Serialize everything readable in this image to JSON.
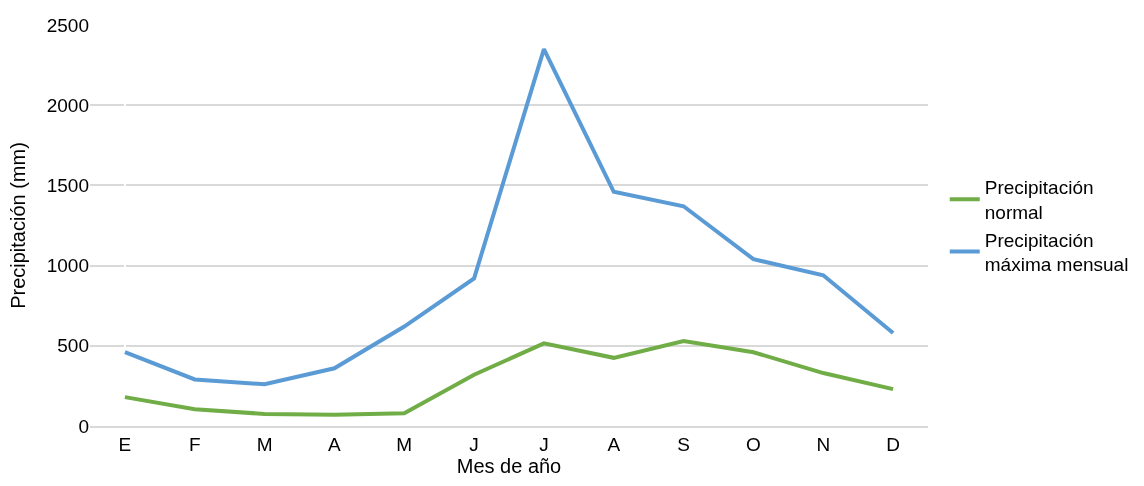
{
  "chart_data": {
    "type": "line",
    "xlabel": "Mes de año",
    "ylabel": "Precipitación (mm)",
    "categories": [
      "E",
      "F",
      "M",
      "A",
      "M",
      "J",
      "J",
      "A",
      "S",
      "O",
      "N",
      "D"
    ],
    "series": [
      {
        "name": "Precipitación normal",
        "color": "#70ad47",
        "values": [
          180,
          105,
          75,
          70,
          80,
          320,
          515,
          425,
          530,
          460,
          330,
          230
        ]
      },
      {
        "name": "Precipitación máxima mensual",
        "color": "#5b9bd5",
        "values": [
          460,
          290,
          260,
          360,
          620,
          920,
          2350,
          1460,
          1370,
          1040,
          940,
          580
        ]
      }
    ],
    "ylim": [
      0,
      2500
    ],
    "yticks": [
      0,
      500,
      1000,
      1500,
      2000,
      2500
    ],
    "grid": "y",
    "legend": "right",
    "marker": "none",
    "line_style": "solid"
  }
}
